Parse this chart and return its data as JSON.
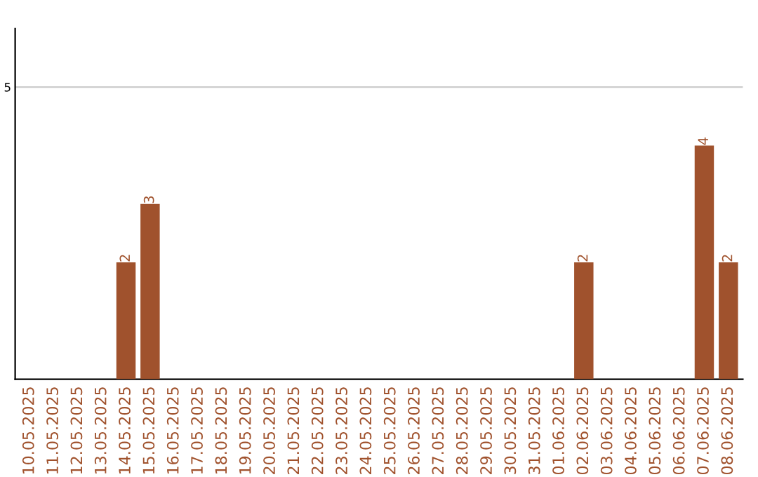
{
  "chart_data": {
    "type": "bar",
    "categories": [
      "10.05.2025",
      "11.05.2025",
      "12.05.2025",
      "13.05.2025",
      "14.05.2025",
      "15.05.2025",
      "16.05.2025",
      "17.05.2025",
      "18.05.2025",
      "19.05.2025",
      "20.05.2025",
      "21.05.2025",
      "22.05.2025",
      "23.05.2025",
      "24.05.2025",
      "25.05.2025",
      "26.05.2025",
      "27.05.2025",
      "28.05.2025",
      "29.05.2025",
      "30.05.2025",
      "31.05.2025",
      "01.06.2025",
      "02.06.2025",
      "03.06.2025",
      "04.06.2025",
      "05.06.2025",
      "06.06.2025",
      "07.06.2025",
      "08.06.2025"
    ],
    "values": [
      0,
      0,
      0,
      0,
      2,
      3,
      0,
      0,
      0,
      0,
      0,
      0,
      0,
      0,
      0,
      0,
      0,
      0,
      0,
      0,
      0,
      0,
      0,
      2,
      0,
      0,
      0,
      0,
      4,
      2
    ],
    "value_labels": [
      null,
      null,
      null,
      null,
      "2",
      "3",
      null,
      null,
      null,
      null,
      null,
      null,
      null,
      null,
      null,
      null,
      null,
      null,
      null,
      null,
      null,
      null,
      null,
      "2",
      null,
      null,
      null,
      null,
      "4",
      "2"
    ],
    "color": "#a0522d",
    "ylim": [
      0,
      6
    ],
    "yticks": [
      5
    ],
    "grid": "y"
  }
}
